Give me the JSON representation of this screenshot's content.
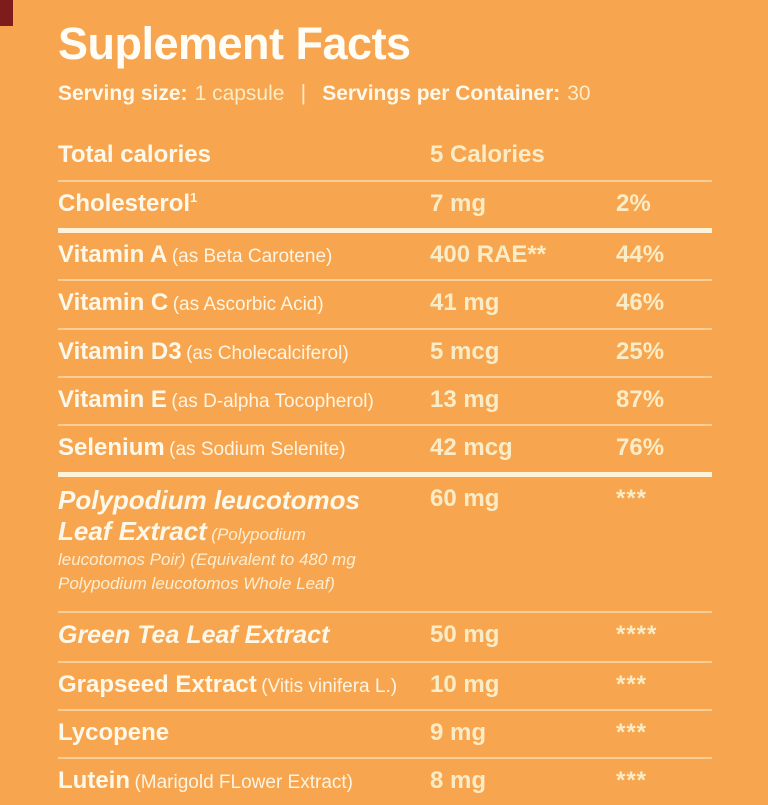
{
  "page": {
    "background_color": "#F7A64F",
    "text_color": "#FDF8EA",
    "value_color": "#F9ECC6",
    "divider_color": "#FCF3D9",
    "corner_mark_color": "#7E1B1B"
  },
  "header": {
    "title": "Suplement Facts",
    "serving_size_label": "Serving size:",
    "serving_size_value": "1 capsule",
    "separator": "|",
    "servings_per_container_label": "Servings per Container:",
    "servings_per_container_value": "30"
  },
  "table": {
    "rows": [
      {
        "label": "Total calories",
        "amount": "5 Calories",
        "dv": ""
      },
      {
        "label": "Cholesterol",
        "sup": "1",
        "amount": "7 mg",
        "dv": "2%"
      },
      {
        "label": "Vitamin A",
        "note": "(as Beta Carotene)",
        "amount": "400 RAE**",
        "dv": "44%"
      },
      {
        "label": "Vitamin C",
        "note": "(as Ascorbic Acid)",
        "amount": "41 mg",
        "dv": "46%"
      },
      {
        "label": "Vitamin D3",
        "note": "(as Cholecalciferol)",
        "amount": "5 mcg",
        "dv": "25%"
      },
      {
        "label": "Vitamin E",
        "note": "(as D-alpha Tocopherol)",
        "amount": "13 mg",
        "dv": "87%"
      },
      {
        "label": "Selenium",
        "note": "(as Sodium Selenite)",
        "amount": "42 mcg",
        "dv": "76%"
      },
      {
        "label_line1": "Polypodium leucotomos",
        "label_line2": "Leaf Extract",
        "note": "(Polypodium leucotomos Poir) (Equivalent to 480 mg Polypodium leucotomos Whole Leaf)",
        "amount": "60 mg",
        "dv": "***"
      },
      {
        "label": "Green Tea Leaf Extract",
        "amount": "50 mg",
        "dv": "****"
      },
      {
        "label": "Grapseed Extract",
        "note": "(Vitis vinifera L.)",
        "amount": "10 mg",
        "dv": "***"
      },
      {
        "label": "Lycopene",
        "amount": "9 mg",
        "dv": "***"
      },
      {
        "label": "Lutein",
        "note": "(Marigold FLower Extract)",
        "amount": "8 mg",
        "dv": "***"
      }
    ]
  }
}
